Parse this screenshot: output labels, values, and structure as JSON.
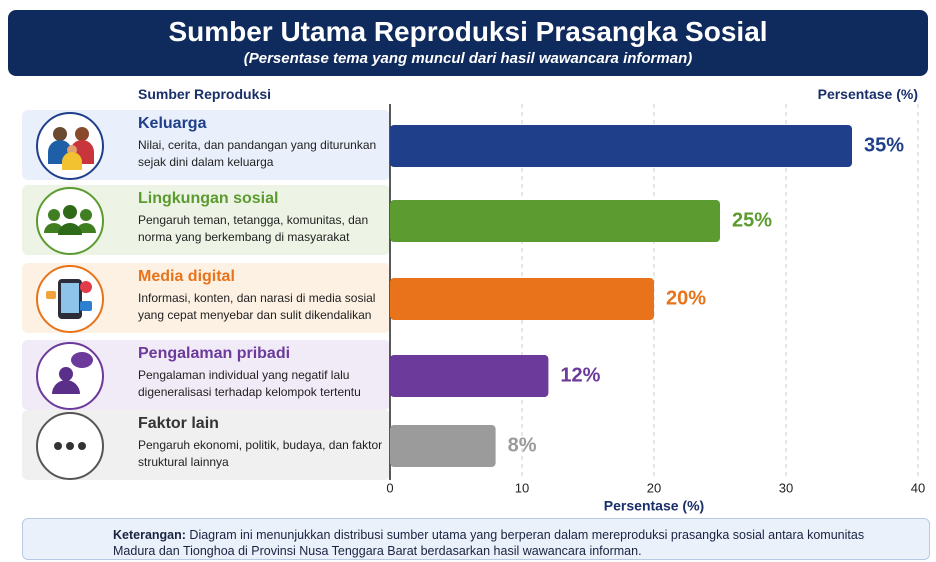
{
  "chart_data": {
    "type": "bar",
    "orientation": "horizontal",
    "title": "Sumber Utama Reproduksi Prasangka Sosial",
    "subtitle": "(Persentase tema yang muncul dari hasil wawancara informan)",
    "category_header": "Sumber Reproduksi",
    "value_header": "Persentase (%)",
    "categories": [
      "Keluarga",
      "Lingkungan sosial",
      "Media digital",
      "Pengalaman pribadi",
      "Faktor lain"
    ],
    "descriptions": [
      "Nilai, cerita, dan pandangan yang diturunkan sejak dini dalam keluarga",
      "Pengaruh teman, tetangga, komunitas, dan norma yang berkembang di masyarakat",
      "Informasi, konten, dan narasi di media sosial yang cepat menyebar dan sulit dikendalikan",
      "Pengalaman individual yang negatif lalu digeneralisasi terhadap kelompok tertentu",
      "Pengaruh ekonomi, politik, budaya, dan faktor struktural lainnya"
    ],
    "values": [
      35,
      25,
      20,
      12,
      8
    ],
    "value_labels": [
      "35%",
      "25%",
      "20%",
      "12%",
      "8%"
    ],
    "colors": [
      "#1f3f8a",
      "#5b9b2f",
      "#e8731a",
      "#6b3a9b",
      "#9b9b9b"
    ],
    "xlim": [
      0,
      40
    ],
    "xticks": [
      0,
      10,
      20,
      30,
      40
    ],
    "xlabel": "Persentase (%)",
    "grid": true,
    "note_label": "Keterangan:",
    "note": "Diagram ini menunjukkan distribusi sumber utama yang berperan dalam mereproduksi prasangka sosial antara komunitas Madura dan Tionghoa di Provinsi Nusa Tenggara Barat berdasarkan hasil wawancara informan."
  }
}
